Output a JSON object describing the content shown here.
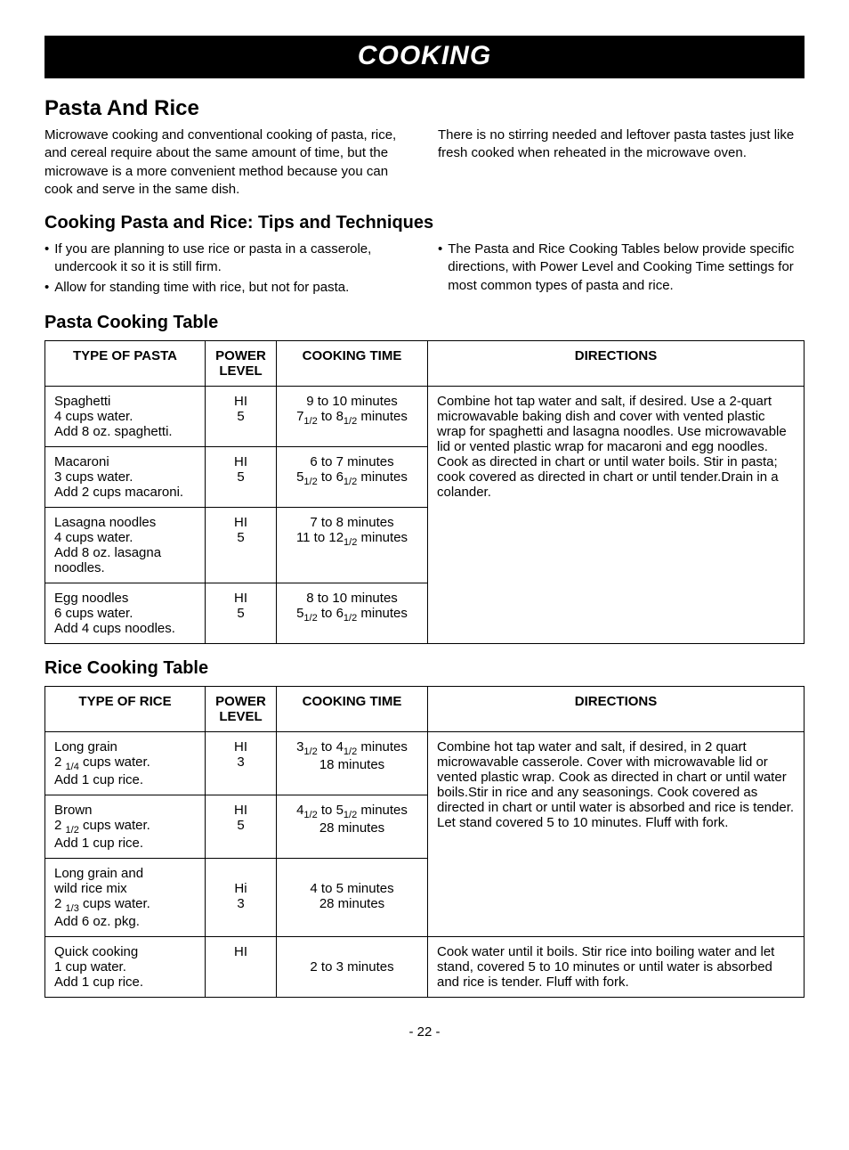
{
  "banner": "COOKING",
  "section_title": "Pasta And Rice",
  "intro": {
    "left": "Microwave cooking and conventional cooking of pasta, rice, and cereal require about the same amount of time, but the microwave is a more convenient method because you can cook and serve in the same dish.",
    "right": "There is no stirring needed and leftover pasta tastes just like fresh cooked when reheated in the microwave oven."
  },
  "tips_title": "Cooking Pasta and Rice: Tips and Techniques",
  "tips": {
    "left": [
      "If you are planning to use rice or pasta in a casserole, undercook it so it is still firm.",
      "Allow for standing time with rice, but not for pasta."
    ],
    "right": [
      "The Pasta and Rice Cooking Tables below provide specific directions, with Power Level and Cooking Time settings for most common types of pasta and rice."
    ]
  },
  "pasta_table_title": "Pasta Cooking Table",
  "pasta_headers": {
    "type": "TYPE OF PASTA",
    "power": "POWER LEVEL",
    "time": "COOKING TIME",
    "directions": "DIRECTIONS"
  },
  "pasta_rows": [
    {
      "type": "Spaghetti\n4 cups water.\nAdd 8 oz. spaghetti.",
      "power": "HI\n5",
      "time": "9 to 10 minutes\n7½ to 8½ minutes"
    },
    {
      "type": "Macaroni\n3 cups water.\nAdd 2 cups macaroni.",
      "power": "HI\n5",
      "time": "6 to 7 minutes\n5½ to 6½ minutes"
    },
    {
      "type": "Lasagna noodles\n4 cups water.\nAdd 8 oz. lasagna noodles.",
      "power": "HI\n5",
      "time": "7 to 8 minutes\n11 to 12½ minutes"
    },
    {
      "type": "Egg noodles\n6 cups water.\nAdd 4 cups noodles.",
      "power": "HI\n5",
      "time": "8 to 10 minutes\n5½ to 6½ minutes"
    }
  ],
  "pasta_directions": "Combine hot tap water and salt, if desired. Use a 2-quart microwavable baking dish and cover with vented plastic wrap for spaghetti and lasagna noodles. Use microwavable lid or vented plastic wrap for macaroni and egg noodles.\nCook as directed in chart or until water boils. Stir in pasta; cook covered as directed in chart or until tender.Drain in a colander.",
  "rice_table_title": "Rice Cooking Table",
  "rice_headers": {
    "type": "TYPE OF RICE",
    "power": "POWER LEVEL",
    "time": "COOKING TIME",
    "directions": "DIRECTIONS"
  },
  "rice_rows": [
    {
      "type": "Long grain\n2 ¼ cups water.\nAdd 1 cup rice.",
      "power": "HI\n3",
      "time": "3½ to 4½ minutes\n18 minutes"
    },
    {
      "type": "Brown\n2 ½ cups water.\nAdd 1 cup rice.",
      "power": "HI\n5",
      "time": "4½ to 5½ minutes\n28 minutes"
    },
    {
      "type": "Long grain and\nwild rice mix\n2 ⅓ cups water.\nAdd 6 oz. pkg.",
      "power": "Hi\n3",
      "time": "4 to 5 minutes\n28 minutes"
    },
    {
      "type": "Quick cooking\n1 cup water.\nAdd 1 cup rice.",
      "power": "HI",
      "time": "2 to 3 minutes"
    }
  ],
  "rice_directions_group1": "Combine hot tap water and salt, if desired, in 2 quart microwavable casserole. Cover with microwavable lid or vented plastic wrap. Cook as directed in chart or until water boils.Stir in rice and any seasonings.\nCook covered as directed in chart or until water is absorbed and rice is tender.\nLet stand covered 5 to 10 minutes. Fluff with fork.",
  "rice_directions_group2": "Cook water until it boils. Stir rice into boiling water and let stand, covered 5 to 10 minutes or until water is absorbed and rice is tender. Fluff with fork.",
  "page_number": "- 22 -"
}
